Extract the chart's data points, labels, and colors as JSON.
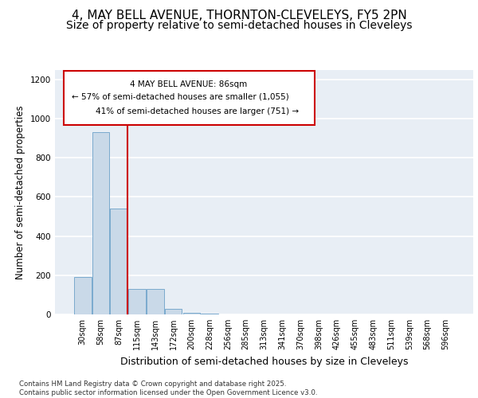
{
  "title_line1": "4, MAY BELL AVENUE, THORNTON-CLEVELEYS, FY5 2PN",
  "title_line2": "Size of property relative to semi-detached houses in Cleveleys",
  "xlabel": "Distribution of semi-detached houses by size in Cleveleys",
  "ylabel": "Number of semi-detached properties",
  "categories": [
    "30sqm",
    "58sqm",
    "87sqm",
    "115sqm",
    "143sqm",
    "172sqm",
    "200sqm",
    "228sqm",
    "256sqm",
    "285sqm",
    "313sqm",
    "341sqm",
    "370sqm",
    "398sqm",
    "426sqm",
    "455sqm",
    "483sqm",
    "511sqm",
    "539sqm",
    "568sqm",
    "596sqm"
  ],
  "values": [
    190,
    930,
    540,
    130,
    130,
    30,
    10,
    5,
    0,
    0,
    0,
    0,
    0,
    0,
    0,
    0,
    0,
    0,
    0,
    0,
    0
  ],
  "bar_color": "#c9d9e8",
  "bar_edge_color": "#7aaace",
  "vline_color": "#cc0000",
  "annotation_line1": "4 MAY BELL AVENUE: 86sqm",
  "annotation_line2": "← 57% of semi-detached houses are smaller (1,055)",
  "annotation_line3": "41% of semi-detached houses are larger (751) →",
  "annotation_box_color": "#cc0000",
  "ylim": [
    0,
    1250
  ],
  "yticks": [
    0,
    200,
    400,
    600,
    800,
    1000,
    1200
  ],
  "background_color": "#e8eef5",
  "grid_color": "#ffffff",
  "footer_text": "Contains HM Land Registry data © Crown copyright and database right 2025.\nContains public sector information licensed under the Open Government Licence v3.0.",
  "title_fontsize": 11,
  "subtitle_fontsize": 10,
  "tick_fontsize": 7,
  "ylabel_fontsize": 8.5,
  "xlabel_fontsize": 9,
  "property_bin_index": 2
}
